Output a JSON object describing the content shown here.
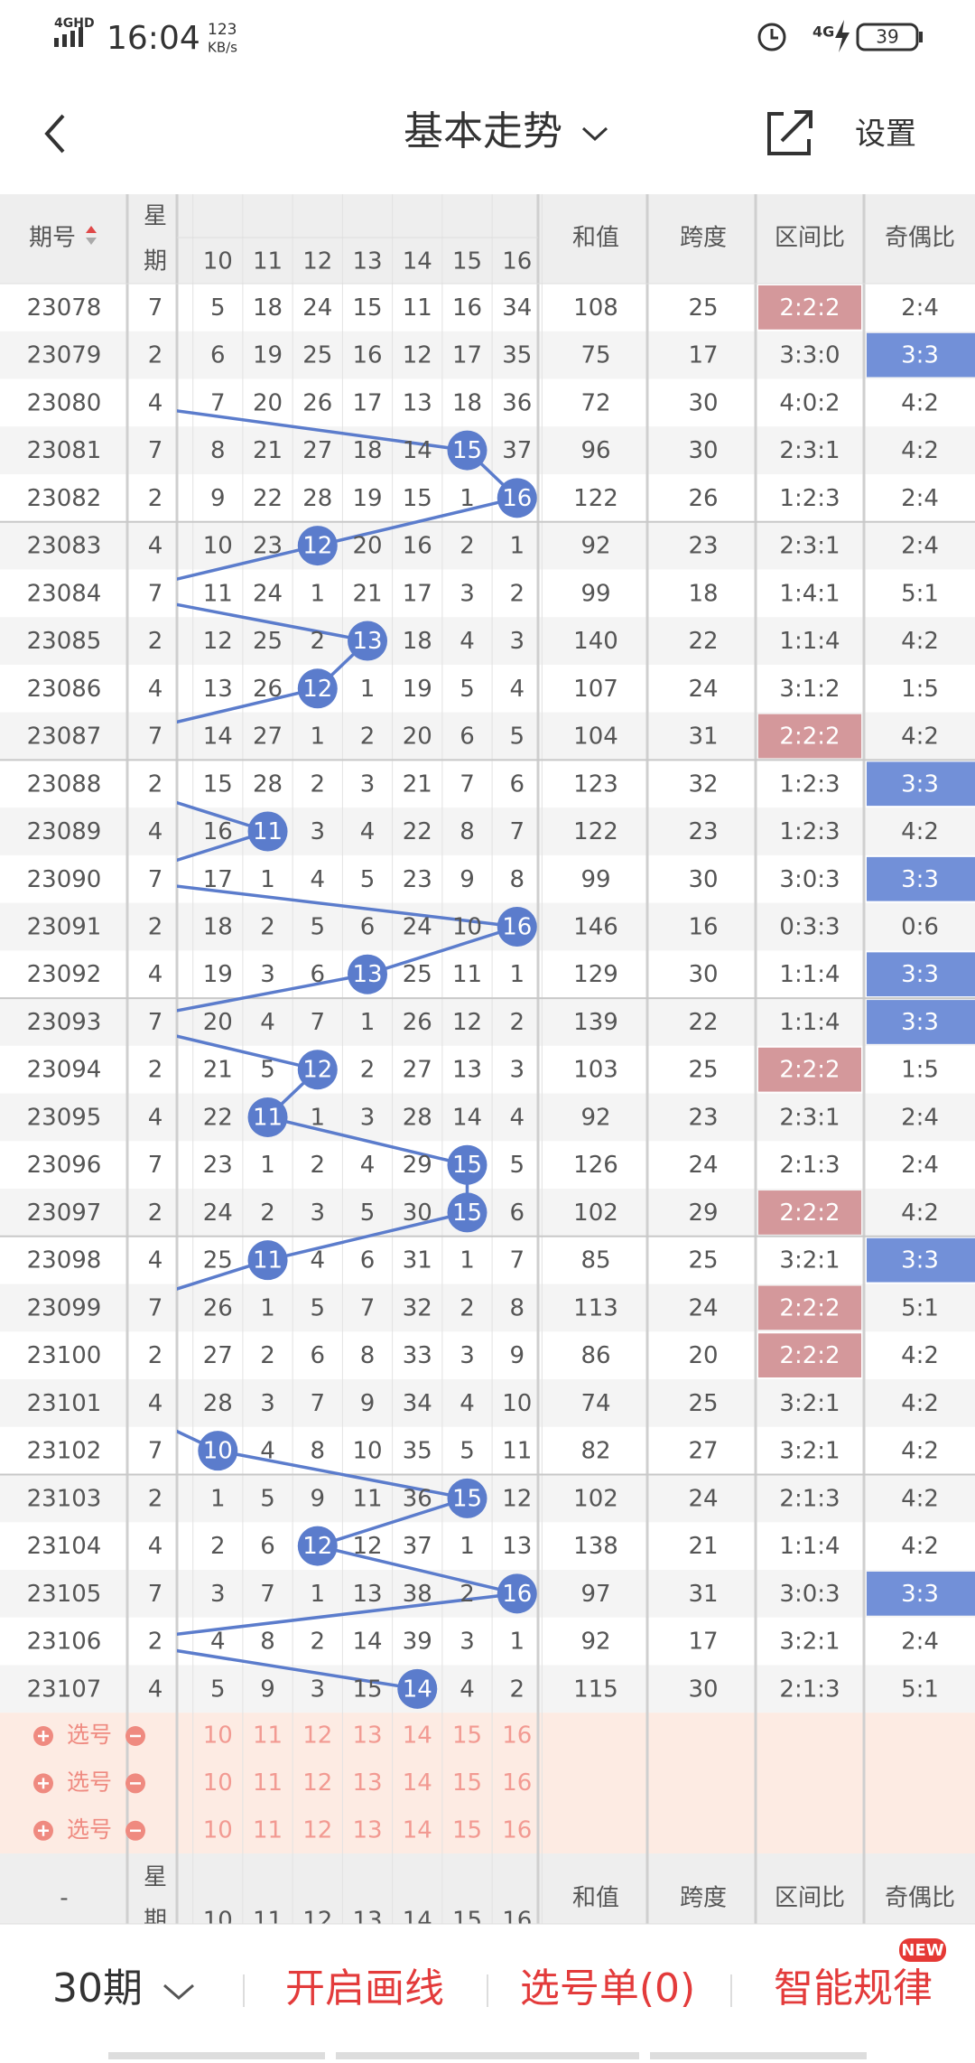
{
  "status_bar": {
    "network": "4GHD",
    "time": "16:04",
    "speed": "123",
    "speed_unit": "KB/s",
    "network2": "4G",
    "battery": "39"
  },
  "header": {
    "title": "基本走势",
    "settings": "设置"
  },
  "table": {
    "columns": {
      "period": "期号",
      "weekday_top": "星",
      "weekday_bottom": "期",
      "numbers": [
        10,
        11,
        12,
        13,
        14,
        15,
        16
      ],
      "sum": "和值",
      "span": "跨度",
      "zone": "区间比",
      "odd_even": "奇偶比"
    },
    "bottom_period": "-",
    "rows": [
      {
        "period": "23078",
        "weekday": "7",
        "cells": [
          5,
          18,
          24,
          15,
          11,
          16,
          34
        ],
        "ball": null,
        "sum": 108,
        "span": 25,
        "zone": "2:2:2",
        "zone_hl": true,
        "odd_even": "2:4",
        "odd_even_hl": false
      },
      {
        "period": "23079",
        "weekday": "2",
        "cells": [
          6,
          19,
          25,
          16,
          12,
          17,
          35
        ],
        "ball": null,
        "sum": 75,
        "span": 17,
        "zone": "3:3:0",
        "zone_hl": false,
        "odd_even": "3:3",
        "odd_even_hl": true
      },
      {
        "period": "23080",
        "weekday": "4",
        "cells": [
          7,
          20,
          26,
          17,
          13,
          18,
          36
        ],
        "ball": null,
        "sum": 72,
        "span": 30,
        "zone": "4:0:2",
        "zone_hl": false,
        "odd_even": "4:2",
        "odd_even_hl": false
      },
      {
        "period": "23081",
        "weekday": "7",
        "cells": [
          8,
          21,
          27,
          18,
          14,
          15,
          37
        ],
        "ball": 5,
        "sum": 96,
        "span": 30,
        "zone": "2:3:1",
        "zone_hl": false,
        "odd_even": "4:2",
        "odd_even_hl": false
      },
      {
        "period": "23082",
        "weekday": "2",
        "cells": [
          9,
          22,
          28,
          19,
          15,
          1,
          16
        ],
        "ball": 6,
        "sum": 122,
        "span": 26,
        "zone": "1:2:3",
        "zone_hl": false,
        "odd_even": "2:4",
        "odd_even_hl": false
      },
      {
        "period": "23083",
        "weekday": "4",
        "cells": [
          10,
          23,
          12,
          20,
          16,
          2,
          1
        ],
        "ball": 2,
        "sum": 92,
        "span": 23,
        "zone": "2:3:1",
        "zone_hl": false,
        "odd_even": "2:4",
        "odd_even_hl": false
      },
      {
        "period": "23084",
        "weekday": "7",
        "cells": [
          11,
          24,
          1,
          21,
          17,
          3,
          2
        ],
        "ball": null,
        "sum": 99,
        "span": 18,
        "zone": "1:4:1",
        "zone_hl": false,
        "odd_even": "5:1",
        "odd_even_hl": false
      },
      {
        "period": "23085",
        "weekday": "2",
        "cells": [
          12,
          25,
          2,
          13,
          18,
          4,
          3
        ],
        "ball": 3,
        "sum": 140,
        "span": 22,
        "zone": "1:1:4",
        "zone_hl": false,
        "odd_even": "4:2",
        "odd_even_hl": false
      },
      {
        "period": "23086",
        "weekday": "4",
        "cells": [
          13,
          26,
          12,
          1,
          19,
          5,
          4
        ],
        "ball": 2,
        "sum": 107,
        "span": 24,
        "zone": "3:1:2",
        "zone_hl": false,
        "odd_even": "1:5",
        "odd_even_hl": false
      },
      {
        "period": "23087",
        "weekday": "7",
        "cells": [
          14,
          27,
          1,
          2,
          20,
          6,
          5
        ],
        "ball": null,
        "sum": 104,
        "span": 31,
        "zone": "2:2:2",
        "zone_hl": true,
        "odd_even": "4:2",
        "odd_even_hl": false
      },
      {
        "period": "23088",
        "weekday": "2",
        "cells": [
          15,
          28,
          2,
          3,
          21,
          7,
          6
        ],
        "ball": null,
        "sum": 123,
        "span": 32,
        "zone": "1:2:3",
        "zone_hl": false,
        "odd_even": "3:3",
        "odd_even_hl": true
      },
      {
        "period": "23089",
        "weekday": "4",
        "cells": [
          16,
          11,
          3,
          4,
          22,
          8,
          7
        ],
        "ball": 1,
        "sum": 122,
        "span": 23,
        "zone": "1:2:3",
        "zone_hl": false,
        "odd_even": "4:2",
        "odd_even_hl": false
      },
      {
        "period": "23090",
        "weekday": "7",
        "cells": [
          17,
          1,
          4,
          5,
          23,
          9,
          8
        ],
        "ball": null,
        "sum": 99,
        "span": 30,
        "zone": "3:0:3",
        "zone_hl": false,
        "odd_even": "3:3",
        "odd_even_hl": true
      },
      {
        "period": "23091",
        "weekday": "2",
        "cells": [
          18,
          2,
          5,
          6,
          24,
          10,
          16
        ],
        "ball": 6,
        "sum": 146,
        "span": 16,
        "zone": "0:3:3",
        "zone_hl": false,
        "odd_even": "0:6",
        "odd_even_hl": false
      },
      {
        "period": "23092",
        "weekday": "4",
        "cells": [
          19,
          3,
          6,
          13,
          25,
          11,
          1
        ],
        "ball": 3,
        "sum": 129,
        "span": 30,
        "zone": "1:1:4",
        "zone_hl": false,
        "odd_even": "3:3",
        "odd_even_hl": true
      },
      {
        "period": "23093",
        "weekday": "7",
        "cells": [
          20,
          4,
          7,
          1,
          26,
          12,
          2
        ],
        "ball": null,
        "sum": 139,
        "span": 22,
        "zone": "1:1:4",
        "zone_hl": false,
        "odd_even": "3:3",
        "odd_even_hl": true
      },
      {
        "period": "23094",
        "weekday": "2",
        "cells": [
          21,
          5,
          12,
          2,
          27,
          13,
          3
        ],
        "ball": 2,
        "sum": 103,
        "span": 25,
        "zone": "2:2:2",
        "zone_hl": true,
        "odd_even": "1:5",
        "odd_even_hl": false
      },
      {
        "period": "23095",
        "weekday": "4",
        "cells": [
          22,
          11,
          1,
          3,
          28,
          14,
          4
        ],
        "ball": 1,
        "sum": 92,
        "span": 23,
        "zone": "2:3:1",
        "zone_hl": false,
        "odd_even": "2:4",
        "odd_even_hl": false
      },
      {
        "period": "23096",
        "weekday": "7",
        "cells": [
          23,
          1,
          2,
          4,
          29,
          15,
          5
        ],
        "ball": 5,
        "sum": 126,
        "span": 24,
        "zone": "2:1:3",
        "zone_hl": false,
        "odd_even": "2:4",
        "odd_even_hl": false
      },
      {
        "period": "23097",
        "weekday": "2",
        "cells": [
          24,
          2,
          3,
          5,
          30,
          15,
          6
        ],
        "ball": 5,
        "sum": 102,
        "span": 29,
        "zone": "2:2:2",
        "zone_hl": true,
        "odd_even": "4:2",
        "odd_even_hl": false
      },
      {
        "period": "23098",
        "weekday": "4",
        "cells": [
          25,
          11,
          4,
          6,
          31,
          1,
          7
        ],
        "ball": 1,
        "sum": 85,
        "span": 25,
        "zone": "3:2:1",
        "zone_hl": false,
        "odd_even": "3:3",
        "odd_even_hl": true
      },
      {
        "period": "23099",
        "weekday": "7",
        "cells": [
          26,
          1,
          5,
          7,
          32,
          2,
          8
        ],
        "ball": null,
        "sum": 113,
        "span": 24,
        "zone": "2:2:2",
        "zone_hl": true,
        "odd_even": "5:1",
        "odd_even_hl": false
      },
      {
        "period": "23100",
        "weekday": "2",
        "cells": [
          27,
          2,
          6,
          8,
          33,
          3,
          9
        ],
        "ball": null,
        "sum": 86,
        "span": 20,
        "zone": "2:2:2",
        "zone_hl": true,
        "odd_even": "4:2",
        "odd_even_hl": false
      },
      {
        "period": "23101",
        "weekday": "4",
        "cells": [
          28,
          3,
          7,
          9,
          34,
          4,
          10
        ],
        "ball": null,
        "sum": 74,
        "span": 25,
        "zone": "3:2:1",
        "zone_hl": false,
        "odd_even": "4:2",
        "odd_even_hl": false
      },
      {
        "period": "23102",
        "weekday": "7",
        "cells": [
          10,
          4,
          8,
          10,
          35,
          5,
          11
        ],
        "ball": 0,
        "sum": 82,
        "span": 27,
        "zone": "3:2:1",
        "zone_hl": false,
        "odd_even": "4:2",
        "odd_even_hl": false
      },
      {
        "period": "23103",
        "weekday": "2",
        "cells": [
          1,
          5,
          9,
          11,
          36,
          15,
          12
        ],
        "ball": 5,
        "sum": 102,
        "span": 24,
        "zone": "2:1:3",
        "zone_hl": false,
        "odd_even": "4:2",
        "odd_even_hl": false
      },
      {
        "period": "23104",
        "weekday": "4",
        "cells": [
          2,
          6,
          12,
          12,
          37,
          1,
          13
        ],
        "ball": 2,
        "sum": 138,
        "span": 21,
        "zone": "1:1:4",
        "zone_hl": false,
        "odd_even": "4:2",
        "odd_even_hl": false
      },
      {
        "period": "23105",
        "weekday": "7",
        "cells": [
          3,
          7,
          1,
          13,
          38,
          2,
          16
        ],
        "ball": 6,
        "sum": 97,
        "span": 31,
        "zone": "3:0:3",
        "zone_hl": false,
        "odd_even": "3:3",
        "odd_even_hl": true
      },
      {
        "period": "23106",
        "weekday": "2",
        "cells": [
          4,
          8,
          2,
          14,
          39,
          3,
          1
        ],
        "ball": null,
        "sum": 92,
        "span": 17,
        "zone": "3:2:1",
        "zone_hl": false,
        "odd_even": "2:4",
        "odd_even_hl": false
      },
      {
        "period": "23107",
        "weekday": "4",
        "cells": [
          5,
          9,
          3,
          15,
          14,
          4,
          2
        ],
        "ball": 4,
        "sum": 115,
        "span": 30,
        "zone": "2:1:3",
        "zone_hl": false,
        "odd_even": "5:1",
        "odd_even_hl": false
      }
    ]
  },
  "picker": {
    "label": "选号",
    "rows": 3
  },
  "footer": {
    "periods": "30期",
    "draw": "开启画线",
    "list": "选号单(0)",
    "smart": "智能规律",
    "badge": "NEW"
  }
}
